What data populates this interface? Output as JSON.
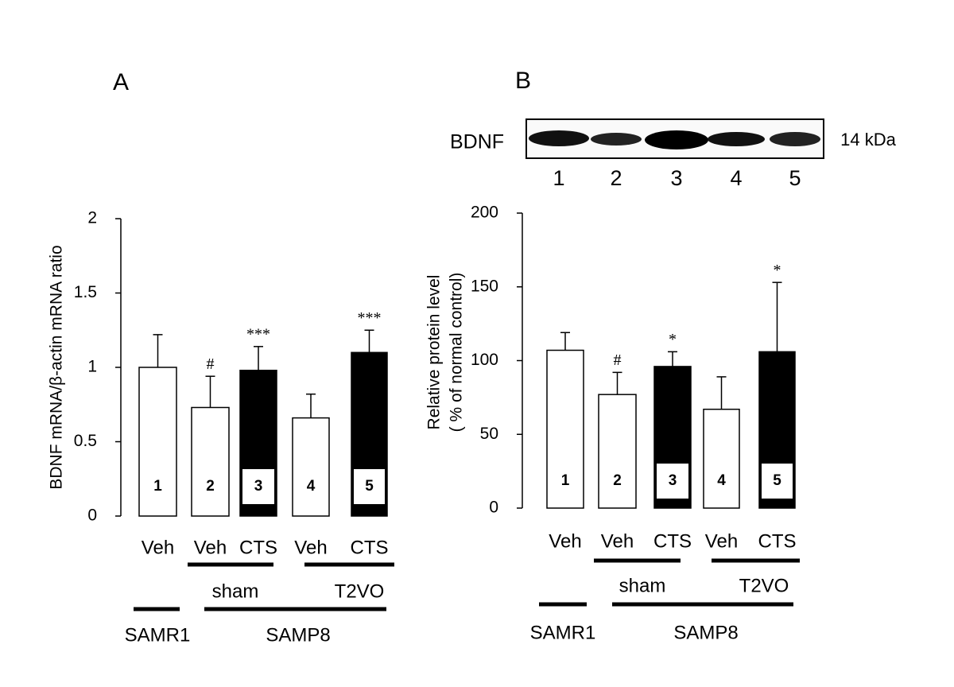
{
  "chart_data": [
    {
      "type": "bar",
      "panel": "A",
      "ylabel": [
        "BDNF mRNA/β-actin mRNA ratio"
      ],
      "categories": [
        "Veh",
        "Veh",
        "CTS",
        "Veh",
        "CTS"
      ],
      "bar_labels": [
        "1",
        "2",
        "3",
        "4",
        "5"
      ],
      "values": [
        1.0,
        0.73,
        0.98,
        0.66,
        1.1
      ],
      "errors": [
        0.22,
        0.21,
        0.16,
        0.16,
        0.15
      ],
      "significance": [
        null,
        "#",
        "***",
        null,
        "***"
      ],
      "colors": [
        "#ffffff",
        "#ffffff",
        "#000000",
        "#ffffff",
        "#000000"
      ],
      "ylim": [
        0,
        2
      ],
      "yticks": [
        0,
        0.5,
        1,
        1.5,
        2
      ],
      "treatment_groups": [
        "sham",
        "T2VO"
      ],
      "strains": [
        "SAMR1",
        "SAMP8"
      ]
    },
    {
      "type": "bar",
      "panel": "B",
      "ylabel": [
        "Relative protein level",
        "( % of normal control)"
      ],
      "categories": [
        "Veh",
        "Veh",
        "CTS",
        "Veh",
        "CTS"
      ],
      "bar_labels": [
        "1",
        "2",
        "3",
        "4",
        "5"
      ],
      "values": [
        107,
        77,
        96,
        67,
        106
      ],
      "errors": [
        12,
        15,
        10,
        22,
        47
      ],
      "significance": [
        null,
        "#",
        "*",
        null,
        "*"
      ],
      "colors": [
        "#ffffff",
        "#ffffff",
        "#000000",
        "#ffffff",
        "#000000"
      ],
      "ylim": [
        0,
        200
      ],
      "yticks": [
        0,
        50,
        100,
        150,
        200
      ],
      "treatment_groups": [
        "sham",
        "T2VO"
      ],
      "strains": [
        "SAMR1",
        "SAMP8"
      ],
      "blot": {
        "label": "BDNF",
        "size": "14 kDa",
        "lanes": [
          "1",
          "2",
          "3",
          "4",
          "5"
        ]
      }
    }
  ]
}
